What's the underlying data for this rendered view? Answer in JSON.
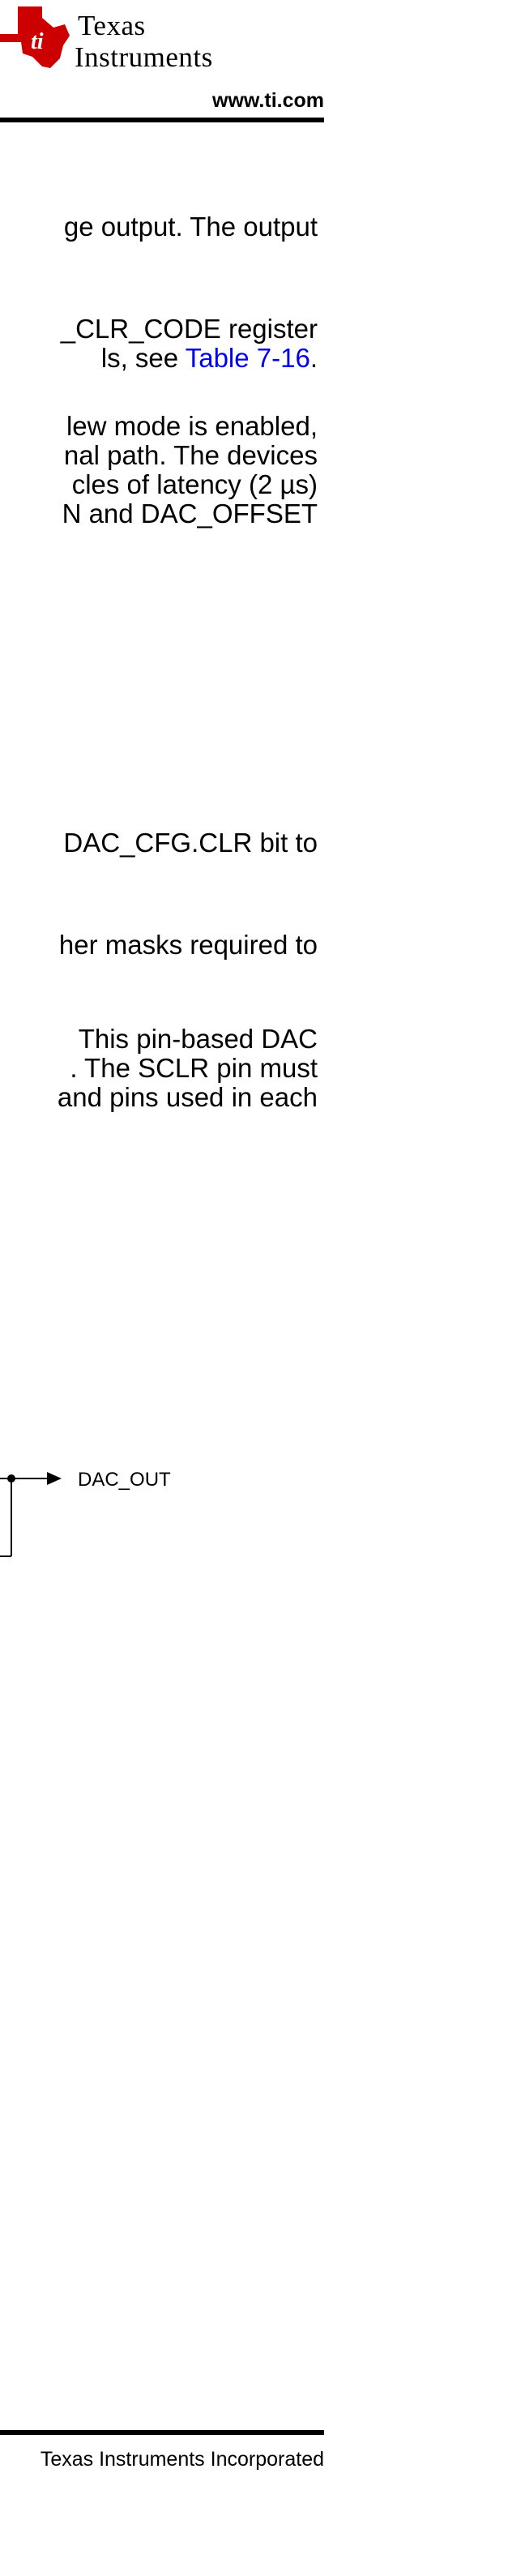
{
  "header": {
    "brand_line1": "Texas",
    "brand_line2": "Instruments",
    "website": "www.ti.com"
  },
  "paragraphs": [
    {
      "lines": [
        "ge output. The output"
      ]
    },
    {
      "lines": [
        "_CLR_CODE register",
        "ls, see |Table 7-16|."
      ]
    },
    {
      "lines": [
        "lew mode is enabled,",
        "nal path. The devices",
        "cles of latency (2 µs)",
        "N and DAC_OFFSET"
      ]
    },
    {
      "lines": [
        "DAC_CFG.CLR bit to"
      ]
    },
    {
      "lines": [
        "her masks required to"
      ]
    },
    {
      "lines": [
        "This pin-based DAC",
        ". The SCLR pin must",
        "and pins used in each"
      ]
    }
  ],
  "p2_prefix": "ls, see ",
  "p2_link": "Table 7-16",
  "p2_suffix": ".",
  "diagram": {
    "output_label": "DAC_OUT"
  },
  "footer": {
    "copyright": "Texas Instruments Incorporated"
  },
  "colors": {
    "brand_red": "#cc0000",
    "link_blue": "#0000ee"
  }
}
